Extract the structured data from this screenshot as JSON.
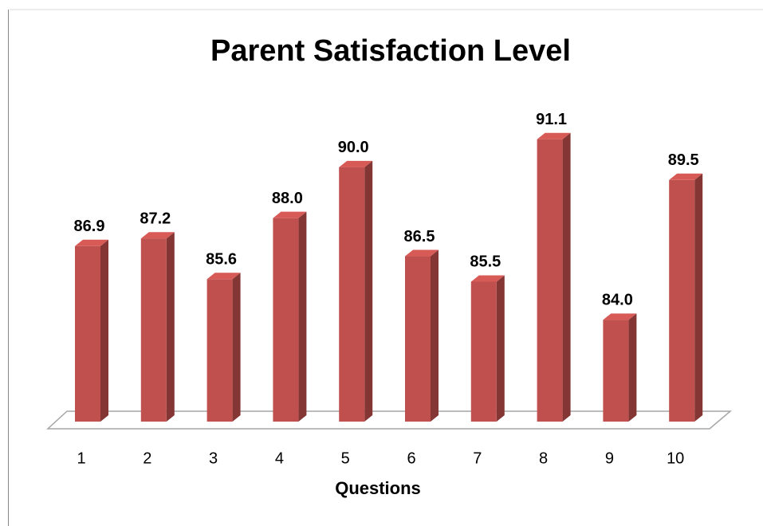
{
  "chart_data": {
    "type": "bar",
    "title": "Parent Satisfaction Level",
    "x_label": "Questions",
    "categories": [
      "1",
      "2",
      "3",
      "4",
      "5",
      "6",
      "7",
      "8",
      "9",
      "10"
    ],
    "values": [
      86.9,
      87.2,
      85.6,
      88.0,
      90.0,
      86.5,
      85.5,
      91.1,
      84.0,
      89.5
    ],
    "value_labels": [
      "86.9",
      "87.2",
      "85.6",
      "88.0",
      "90.0",
      "86.5",
      "85.5",
      "91.1",
      "84.0",
      "89.5"
    ],
    "color": "#c0504d",
    "ylim": [
      80,
      92
    ]
  }
}
